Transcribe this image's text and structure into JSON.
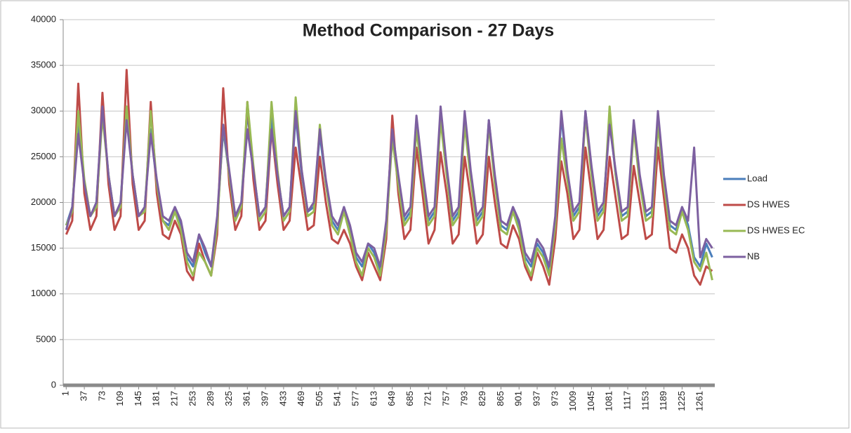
{
  "chart_data": {
    "type": "line",
    "title": "Method Comparison - 27 Days",
    "x": [
      1,
      13,
      25,
      37,
      49,
      61,
      73,
      85,
      97,
      109,
      121,
      133,
      145,
      157,
      169,
      181,
      193,
      205,
      217,
      229,
      241,
      253,
      265,
      277,
      289,
      301,
      313,
      325,
      337,
      349,
      361,
      373,
      385,
      397,
      409,
      421,
      433,
      445,
      457,
      469,
      481,
      493,
      505,
      517,
      529,
      541,
      553,
      565,
      577,
      589,
      601,
      613,
      625,
      637,
      649,
      661,
      673,
      685,
      697,
      709,
      721,
      733,
      745,
      757,
      769,
      781,
      793,
      805,
      817,
      829,
      841,
      853,
      865,
      877,
      889,
      901,
      913,
      925,
      937,
      949,
      961,
      973,
      985,
      997,
      1009,
      1021,
      1033,
      1045,
      1057,
      1069,
      1081,
      1093,
      1105,
      1117,
      1129,
      1141,
      1153,
      1165,
      1177,
      1189,
      1201,
      1213,
      1225,
      1237,
      1249,
      1261,
      1273,
      1285
    ],
    "series": [
      {
        "name": "Load",
        "color": "#4a7ebb",
        "values": [
          17500,
          19500,
          28500,
          22000,
          18500,
          20000,
          30000,
          23000,
          18500,
          20000,
          30000,
          23000,
          18500,
          19500,
          28000,
          22000,
          18000,
          17500,
          19500,
          17500,
          14000,
          13000,
          16500,
          14500,
          13000,
          18000,
          28000,
          23000,
          18500,
          20000,
          30000,
          23500,
          18500,
          19500,
          29500,
          23000,
          18500,
          19500,
          29500,
          23000,
          19000,
          19500,
          27500,
          22000,
          18000,
          17000,
          19500,
          17000,
          14000,
          13000,
          15500,
          14500,
          12500,
          17500,
          28000,
          22500,
          18000,
          19000,
          29000,
          23000,
          18000,
          19000,
          30000,
          23500,
          18000,
          19000,
          29500,
          23000,
          18000,
          19000,
          29000,
          22500,
          17500,
          17000,
          19500,
          17500,
          14000,
          13000,
          15500,
          14500,
          12500,
          18000,
          29500,
          23000,
          18500,
          19500,
          30000,
          23500,
          18500,
          19500,
          29500,
          23000,
          18500,
          19000,
          28500,
          22500,
          18500,
          19000,
          29500,
          22500,
          17500,
          17000,
          19500,
          17500,
          14000,
          13000,
          15500,
          14000
        ]
      },
      {
        "name": "DS HWES",
        "color": "#be4b48",
        "values": [
          16500,
          18000,
          33000,
          21000,
          17000,
          18500,
          32000,
          22000,
          17000,
          18500,
          34500,
          22000,
          17000,
          18000,
          31000,
          21000,
          16500,
          16000,
          18000,
          16500,
          12500,
          11500,
          15500,
          13500,
          12000,
          16500,
          32500,
          22000,
          17000,
          18500,
          31000,
          22500,
          17000,
          18000,
          28000,
          22000,
          17000,
          18000,
          26000,
          21500,
          17000,
          17500,
          25000,
          20000,
          16000,
          15500,
          17000,
          15500,
          13000,
          11500,
          14500,
          13000,
          11500,
          16000,
          29500,
          21000,
          16000,
          17000,
          26000,
          21000,
          15500,
          17000,
          25500,
          21000,
          15500,
          16500,
          25000,
          20500,
          15500,
          16500,
          25000,
          20000,
          15500,
          15000,
          17500,
          16000,
          13000,
          11500,
          14500,
          13000,
          11000,
          16000,
          24500,
          21000,
          16000,
          17000,
          26000,
          21000,
          16000,
          17000,
          25000,
          20500,
          16000,
          16500,
          24000,
          20000,
          16000,
          16500,
          26000,
          20500,
          15000,
          14500,
          16500,
          15000,
          12000,
          11000,
          13000,
          12500
        ]
      },
      {
        "name": "DS HWES EC",
        "color": "#98b954",
        "values": [
          17500,
          19000,
          30000,
          22500,
          18500,
          19500,
          29500,
          23000,
          18500,
          19500,
          30500,
          23000,
          18500,
          19000,
          30000,
          22000,
          18000,
          17000,
          19000,
          17000,
          13500,
          12000,
          14500,
          13500,
          12000,
          17500,
          28500,
          23000,
          18000,
          19500,
          31000,
          24000,
          18000,
          19000,
          31000,
          23500,
          18000,
          19000,
          31500,
          23500,
          18500,
          19000,
          28500,
          22000,
          17500,
          16500,
          19000,
          16500,
          13500,
          12000,
          15000,
          14000,
          12000,
          17000,
          27000,
          22000,
          17500,
          18500,
          28000,
          22500,
          17500,
          18500,
          29000,
          23000,
          17500,
          18500,
          28500,
          22500,
          17500,
          18500,
          28500,
          22000,
          17000,
          16500,
          19000,
          17000,
          13500,
          12000,
          15000,
          14000,
          12000,
          17500,
          27000,
          22500,
          18000,
          19000,
          29500,
          23000,
          18000,
          19000,
          30500,
          23000,
          18000,
          18500,
          28000,
          22000,
          18000,
          18500,
          28500,
          22000,
          17000,
          16500,
          19000,
          17000,
          13500,
          12500,
          14500,
          11500
        ]
      },
      {
        "name": "NB",
        "color": "#7d60a0",
        "values": [
          17000,
          19500,
          27500,
          22000,
          18500,
          20000,
          30500,
          23000,
          18500,
          20000,
          29000,
          23000,
          18500,
          19500,
          27500,
          22500,
          18500,
          18000,
          19500,
          18000,
          14500,
          13500,
          16500,
          15000,
          13000,
          18500,
          28500,
          23500,
          18500,
          20000,
          28000,
          23500,
          18500,
          19500,
          28000,
          23000,
          18500,
          19500,
          30000,
          23500,
          19000,
          20000,
          28000,
          22500,
          18500,
          17500,
          19500,
          17500,
          14500,
          13500,
          15500,
          15000,
          13000,
          18000,
          28000,
          23000,
          18500,
          19500,
          29500,
          23500,
          18500,
          19500,
          30500,
          24000,
          18500,
          19500,
          30000,
          23500,
          18500,
          19500,
          29000,
          23000,
          18000,
          17500,
          19500,
          18000,
          14500,
          13500,
          16000,
          15000,
          13000,
          18500,
          30000,
          23500,
          19000,
          20000,
          30000,
          24000,
          19000,
          20000,
          28500,
          23500,
          19000,
          19500,
          29000,
          23000,
          19000,
          19500,
          30000,
          23000,
          18000,
          17500,
          19500,
          18000,
          26000,
          14000,
          16000,
          15000
        ]
      }
    ],
    "xlim": [
      -5,
      1290
    ],
    "xticks": [
      1,
      37,
      73,
      109,
      145,
      181,
      217,
      253,
      289,
      325,
      361,
      397,
      433,
      469,
      505,
      541,
      577,
      613,
      649,
      685,
      721,
      757,
      793,
      829,
      865,
      901,
      937,
      973,
      1009,
      1045,
      1081,
      1117,
      1153,
      1189,
      1225,
      1261
    ],
    "ylim": [
      0,
      40000
    ],
    "yticks": [
      0,
      5000,
      10000,
      15000,
      20000,
      25000,
      30000,
      35000,
      40000
    ],
    "grid": true,
    "legend": "right"
  }
}
